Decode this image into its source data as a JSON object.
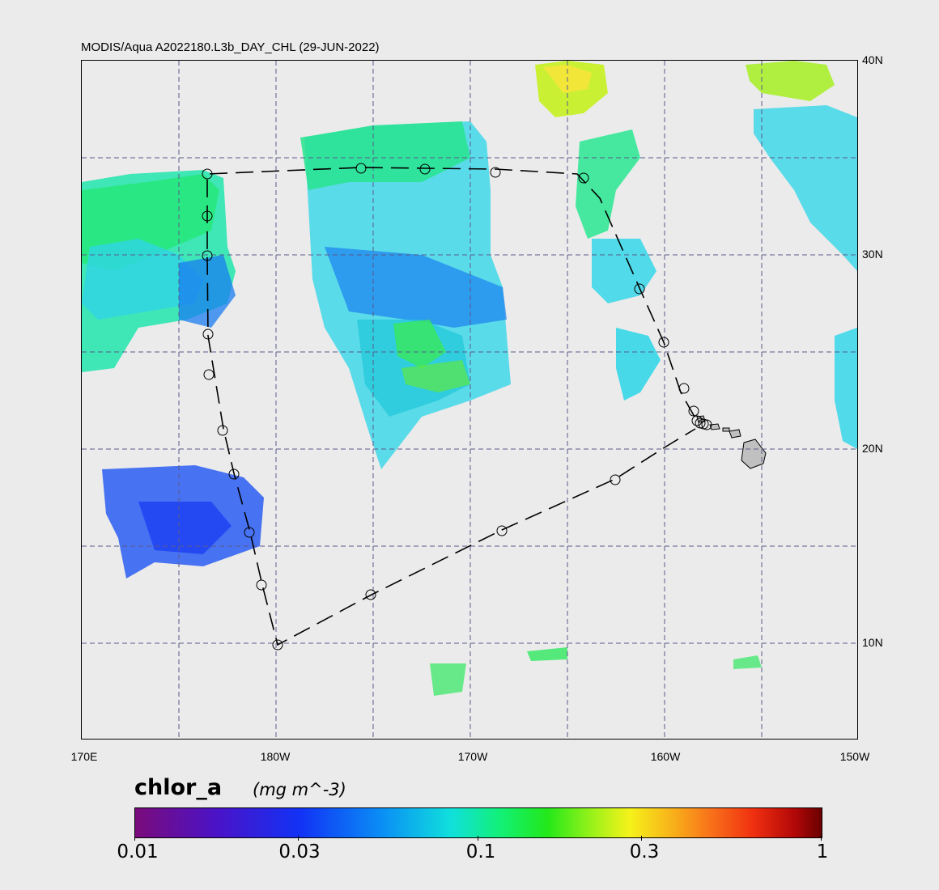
{
  "title": "MODIS/Aqua A2022180.L3b_DAY_CHL (29-JUN-2022)",
  "lat_labels": [
    "40N",
    "30N",
    "20N",
    "10N"
  ],
  "lon_labels": [
    "170E",
    "180W",
    "170W",
    "160W",
    "150W"
  ],
  "colorbar": {
    "variable": "chlor_a",
    "units": "(mg m^-3)",
    "tick_labels": [
      "0.01",
      "0.03",
      "0.1",
      "0.3",
      "1"
    ],
    "scale": "log",
    "range": [
      0.01,
      1
    ]
  },
  "map": {
    "extent_lon": [
      170,
      210
    ],
    "extent_lat": [
      5,
      40
    ],
    "gridlines": "dashed",
    "cruise_track_style": "dashed black line with circle station markers",
    "colors": {
      "background": "#ebebeb",
      "land": "#c0c0c0",
      "grid": "#5a5a8a",
      "track": "#000000"
    }
  }
}
